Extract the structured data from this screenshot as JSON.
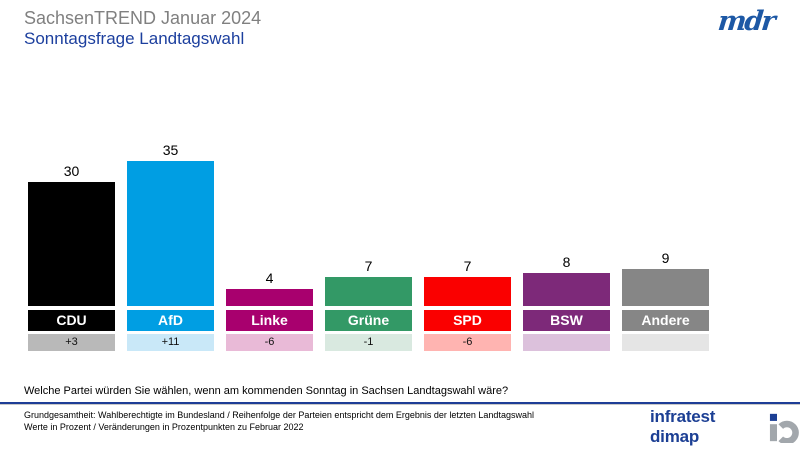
{
  "header": {
    "title": "SachsenTREND Januar 2024",
    "subtitle": "Sonntagsfrage Landtagswahl",
    "channel_logo": "mdr"
  },
  "chart_data": {
    "type": "bar",
    "title": "Sonntagsfrage Landtagswahl",
    "subtitle": "SachsenTREND Januar 2024",
    "categories": [
      "CDU",
      "AfD",
      "Linke",
      "Grüne",
      "SPD",
      "BSW",
      "Andere"
    ],
    "values": [
      30,
      35,
      4,
      7,
      7,
      8,
      9
    ],
    "changes": [
      "+3",
      "+11",
      "-6",
      "-1",
      "-6",
      "",
      ""
    ],
    "unit": "Prozent",
    "change_unit": "Prozentpunkte zu Februar 2022",
    "ylim": [
      0,
      40
    ],
    "grid": false,
    "legend": false,
    "bar_colors": [
      "#000000",
      "#009ee3",
      "#a8006e",
      "#339966",
      "#fa0000",
      "#7d2979",
      "#868686"
    ],
    "change_band_colors": [
      "#b9b9b9",
      "#c9e8f8",
      "#e9bad7",
      "#d9e9e0",
      "#ffb4b1",
      "#dcc1dc",
      "#e5e5e5"
    ]
  },
  "question": "Welche Partei würden Sie wählen, wenn am kommenden Sonntag in Sachsen Landtagswahl wäre?",
  "footer": {
    "note_line1": "Grundgesamtheit: Wahlberechtigte im Bundesland / Reihenfolge der Parteien entspricht dem Ergebnis der letzten Landtagswahl",
    "note_line2": "Werte in Prozent / Veränderungen  in Prozentpunkten zu Februar  2022",
    "brand": "infratest dimap"
  },
  "colors": {
    "title_gray": "#808080",
    "subtitle_blue": "#1c3f9e",
    "separator_blue": "#1e3d96",
    "brand_blue": "#1c3f94",
    "mdr_blue": "#1d58a5",
    "logo_gray": "#a2a7ac"
  }
}
